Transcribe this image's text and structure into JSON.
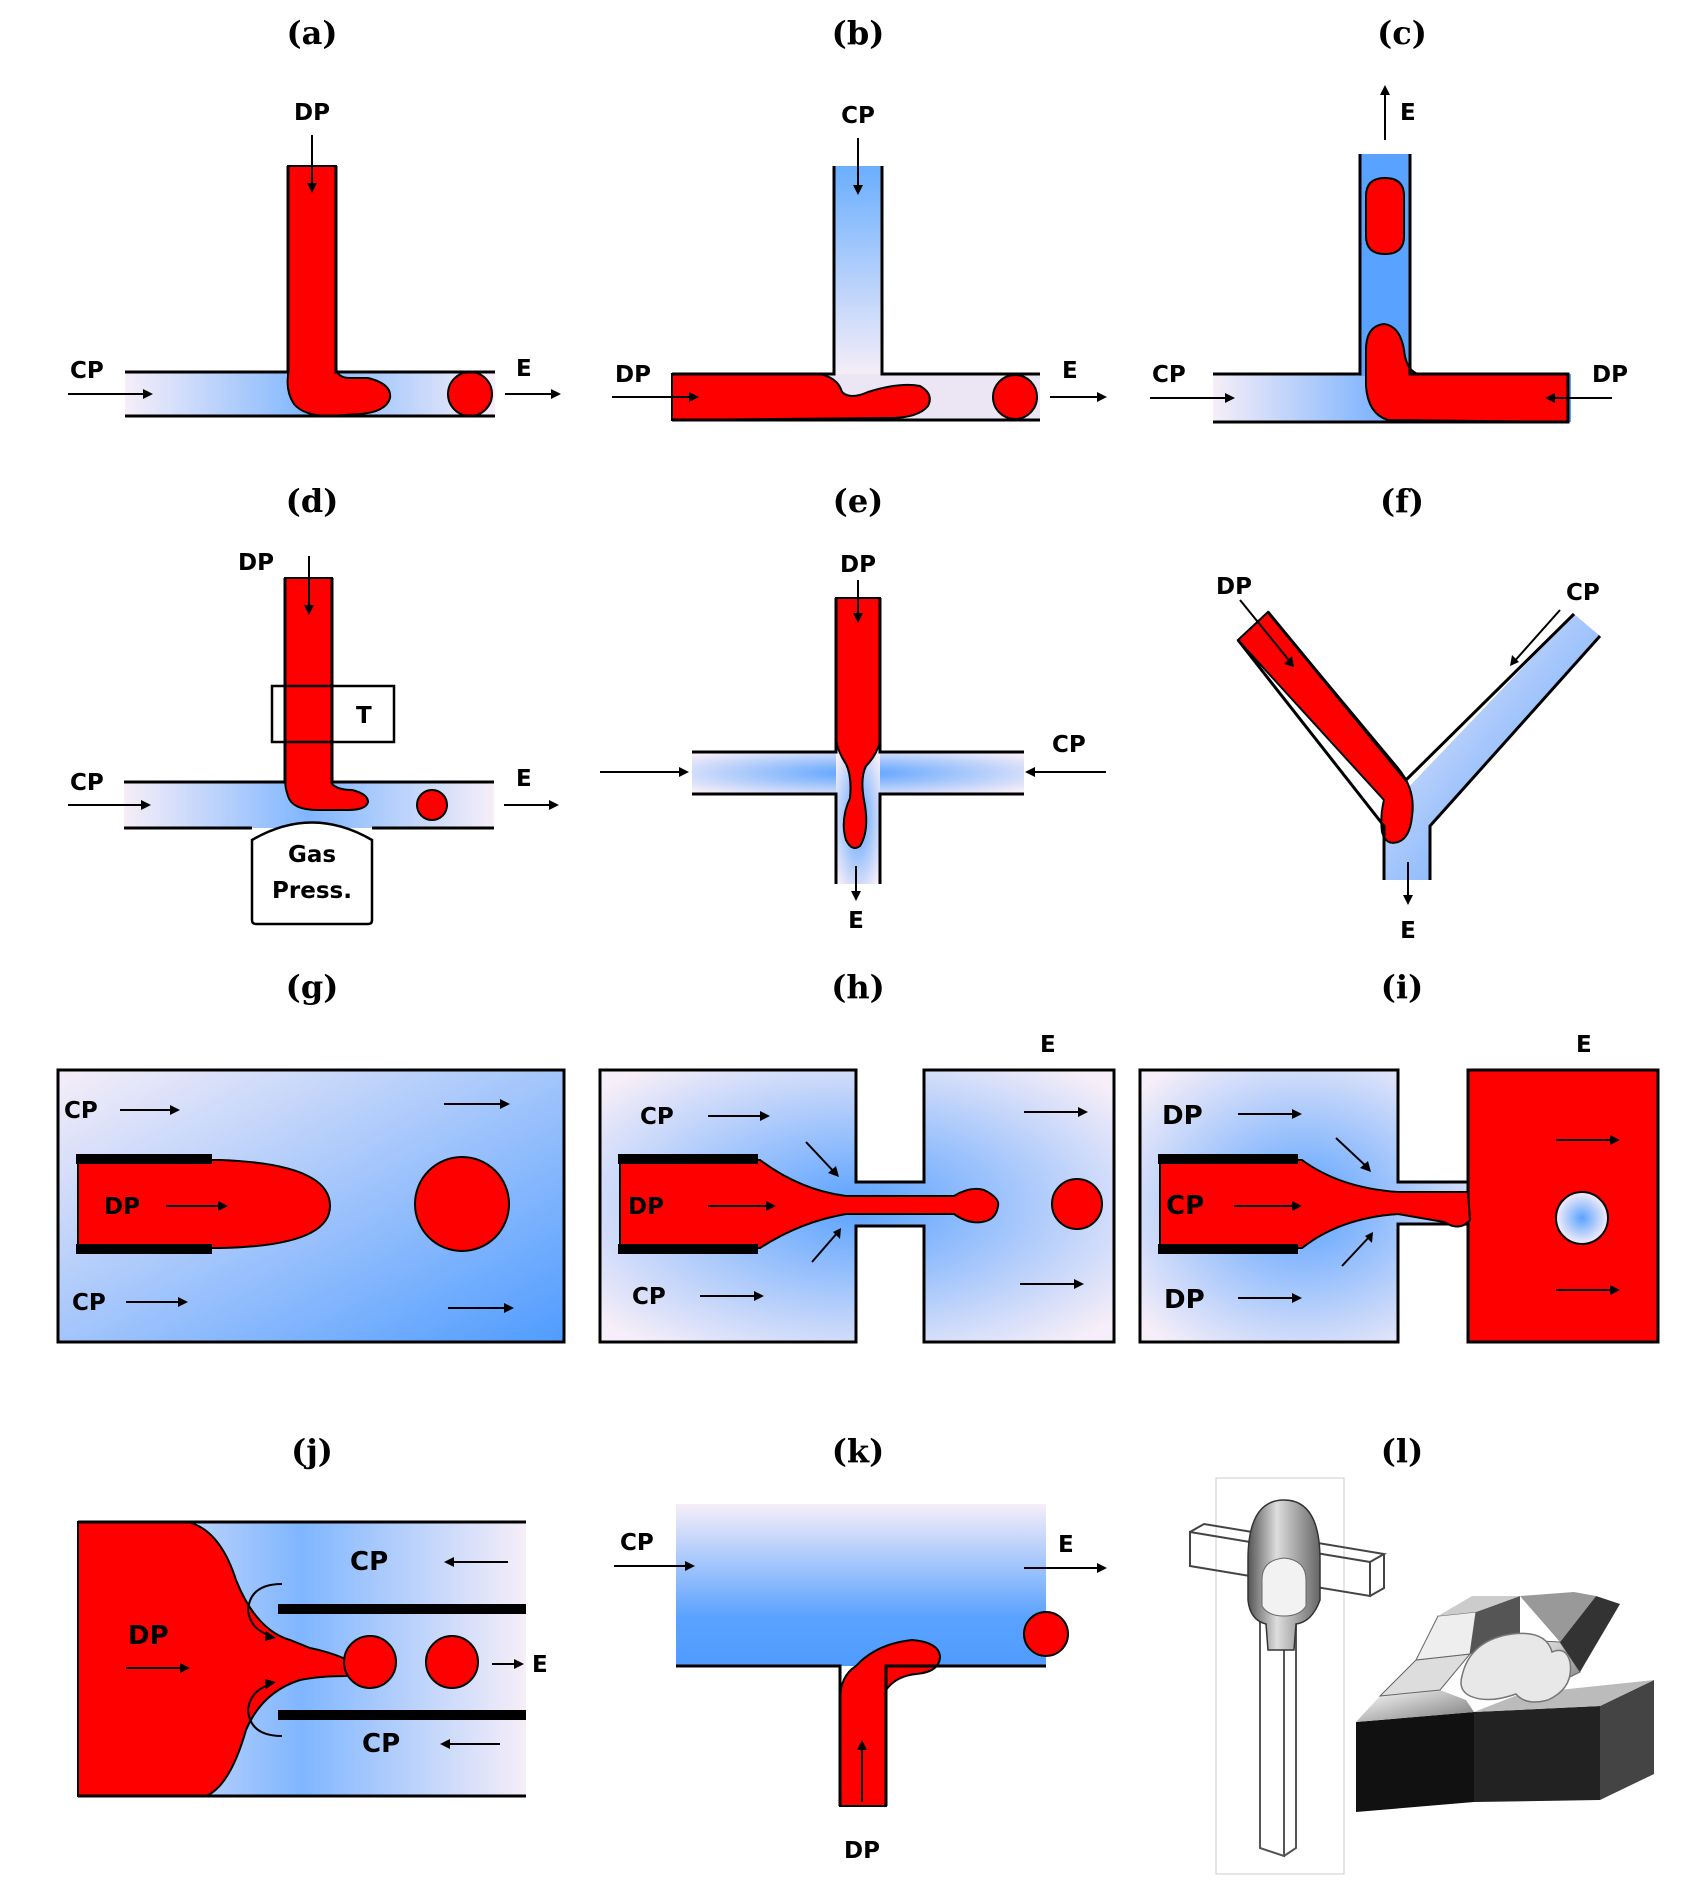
{
  "panels": [
    {
      "id": "a",
      "title": "(a)",
      "labels": {
        "dp": "DP",
        "cp": "CP",
        "e": "E"
      }
    },
    {
      "id": "b",
      "title": "(b)",
      "labels": {
        "cp": "CP",
        "dp": "DP",
        "e": "E"
      }
    },
    {
      "id": "c",
      "title": "(c)",
      "labels": {
        "e": "E",
        "cp": "CP",
        "dp": "DP"
      }
    },
    {
      "id": "d",
      "title": "(d)",
      "labels": {
        "dp": "DP",
        "t": "T",
        "cp": "CP",
        "e": "E",
        "gas1": "Gas",
        "gas2": "Press."
      }
    },
    {
      "id": "e",
      "title": "(e)",
      "labels": {
        "dp": "DP",
        "cp": "CP",
        "e": "E"
      }
    },
    {
      "id": "f",
      "title": "(f)",
      "labels": {
        "dp": "DP",
        "cp": "CP",
        "e": "E"
      }
    },
    {
      "id": "g",
      "title": "(g)",
      "labels": {
        "cp1": "CP",
        "dp": "DP",
        "cp2": "CP"
      }
    },
    {
      "id": "h",
      "title": "(h)",
      "labels": {
        "e": "E",
        "cp1": "CP",
        "dp": "DP",
        "cp2": "CP"
      }
    },
    {
      "id": "i",
      "title": "(i)",
      "labels": {
        "e": "E",
        "dp1": "DP",
        "cp": "CP",
        "dp2": "DP"
      }
    },
    {
      "id": "j",
      "title": "(j)",
      "labels": {
        "cp1": "CP",
        "dp": "DP",
        "e": "E",
        "cp2": "CP"
      }
    },
    {
      "id": "k",
      "title": "(k)",
      "labels": {
        "cp": "CP",
        "e": "E",
        "dp": "DP"
      }
    },
    {
      "id": "l",
      "title": "(l)",
      "labels": {}
    }
  ],
  "colors": {
    "dispersed_phase": "#ff0000",
    "continuous_phase_light": "#f6eef8",
    "continuous_phase_dark": "#55a0ff",
    "wall": "#000000"
  }
}
